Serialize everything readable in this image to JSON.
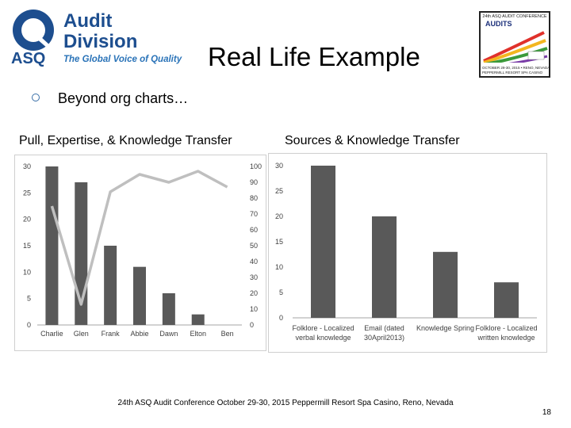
{
  "logo": {
    "brand": "ASQ",
    "line1": "Audit",
    "line2": "Division",
    "tagline": "The Global Voice of Quality"
  },
  "title": "Real Life Example",
  "badge": {
    "top": "24th ASQ AUDIT CONFERENCE",
    "audits": "AUDITS",
    "bottom1": "OCTOBER 29-30, 2015 • RENO, NEVADA",
    "bottom2": "PEPPERMILL RESORT SPA CASINO"
  },
  "bullet": "Beyond org charts…",
  "colors": {
    "bar": "#595959",
    "line": "#bfbfbf",
    "axis": "#a6a6a6",
    "bullet": "#3a6fa8"
  },
  "charts": {
    "left_title": "Pull, Expertise, & Knowledge Transfer",
    "right_title": "Sources & Knowledge Transfer"
  },
  "chart_data": [
    {
      "type": "bar",
      "categories": [
        "Charlie",
        "Glen",
        "Frank",
        "Abbie",
        "Dawn",
        "Elton",
        "Ben"
      ],
      "series": [
        {
          "values": [
            30,
            27,
            15,
            11,
            6,
            2,
            0
          ]
        },
        {
          "values": [
            75,
            13,
            84,
            95,
            90,
            97,
            87
          ],
          "type": "line",
          "axis": "right"
        }
      ],
      "ylim": [
        0,
        30
      ],
      "yticks": [
        "0",
        "5",
        "10",
        "15",
        "20",
        "25",
        "30"
      ],
      "ylim_right": [
        0,
        100
      ],
      "yticks_right": [
        "0",
        "10",
        "20",
        "30",
        "40",
        "50",
        "60",
        "70",
        "80",
        "90",
        "100"
      ]
    },
    {
      "type": "bar",
      "categories": [
        "Folklore - Localized|verbal knowledge",
        "Email (dated|30April2013)",
        "Knowledge Spring",
        "Folklore - Localized|written knowledge"
      ],
      "values": [
        30,
        20,
        13,
        7
      ],
      "ylim": [
        0,
        30
      ],
      "yticks": [
        "0",
        "5",
        "10",
        "15",
        "20",
        "25",
        "30"
      ]
    }
  ],
  "footer": "24th ASQ Audit Conference October 29-30, 2015 Peppermill Resort Spa Casino, Reno, Nevada",
  "page_number": "18"
}
